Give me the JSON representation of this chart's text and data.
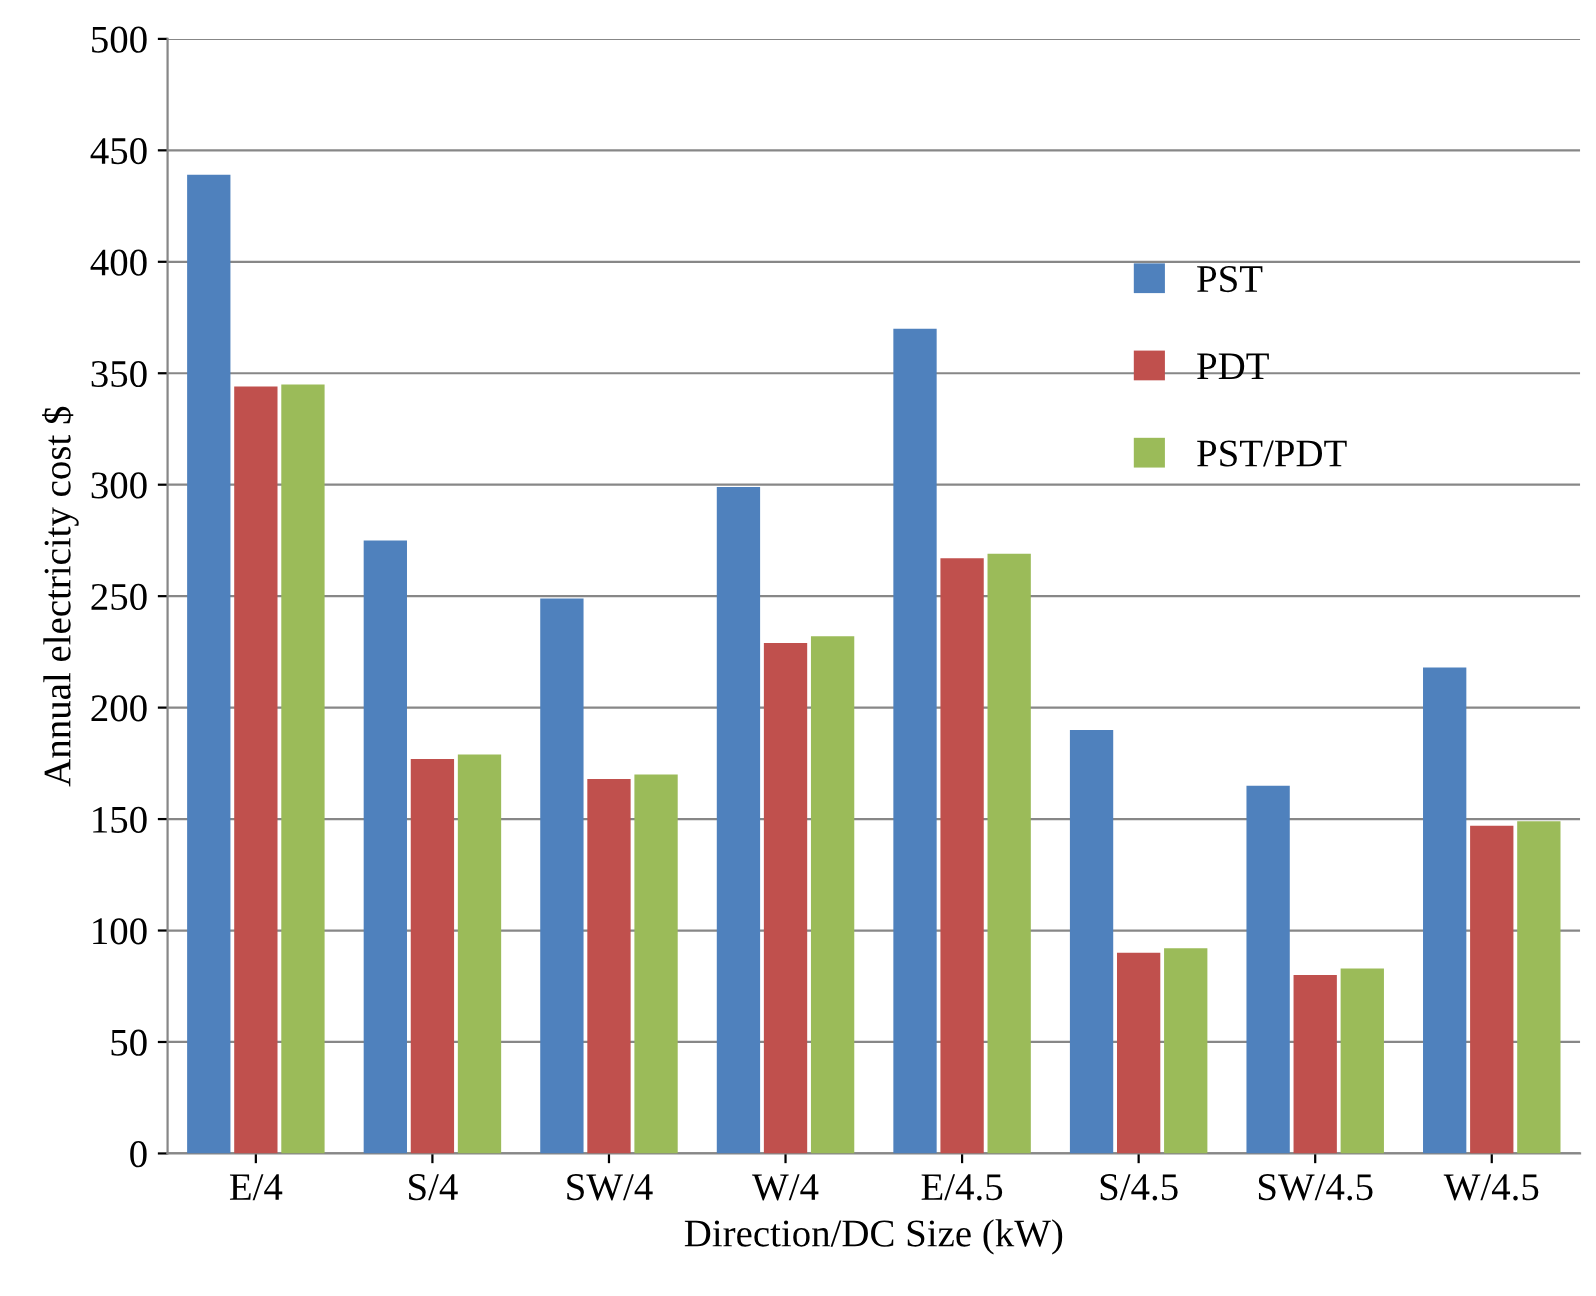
{
  "chart_data": {
    "type": "bar",
    "xlabel": "Direction/DC Size (kW)",
    "ylabel": "Annual electricity cost $",
    "categories": [
      "E/4",
      "S/4",
      "SW/4",
      "W/4",
      "E/4.5",
      "S/4.5",
      "SW/4.5",
      "W/4.5"
    ],
    "series": [
      {
        "name": "PST",
        "color": "#4f81bd",
        "values": [
          439,
          275,
          249,
          299,
          370,
          190,
          165,
          218
        ]
      },
      {
        "name": "PDT",
        "color": "#c0504d",
        "values": [
          344,
          177,
          168,
          229,
          267,
          90,
          80,
          147
        ]
      },
      {
        "name": "PST/PDT",
        "color": "#9bbb59",
        "values": [
          345,
          179,
          170,
          232,
          269,
          92,
          83,
          149
        ]
      }
    ],
    "ylim": [
      0,
      500
    ],
    "yticks": [
      0,
      50,
      100,
      150,
      200,
      250,
      300,
      350,
      400,
      450,
      500
    ],
    "grid": "y",
    "legend": "top right"
  }
}
